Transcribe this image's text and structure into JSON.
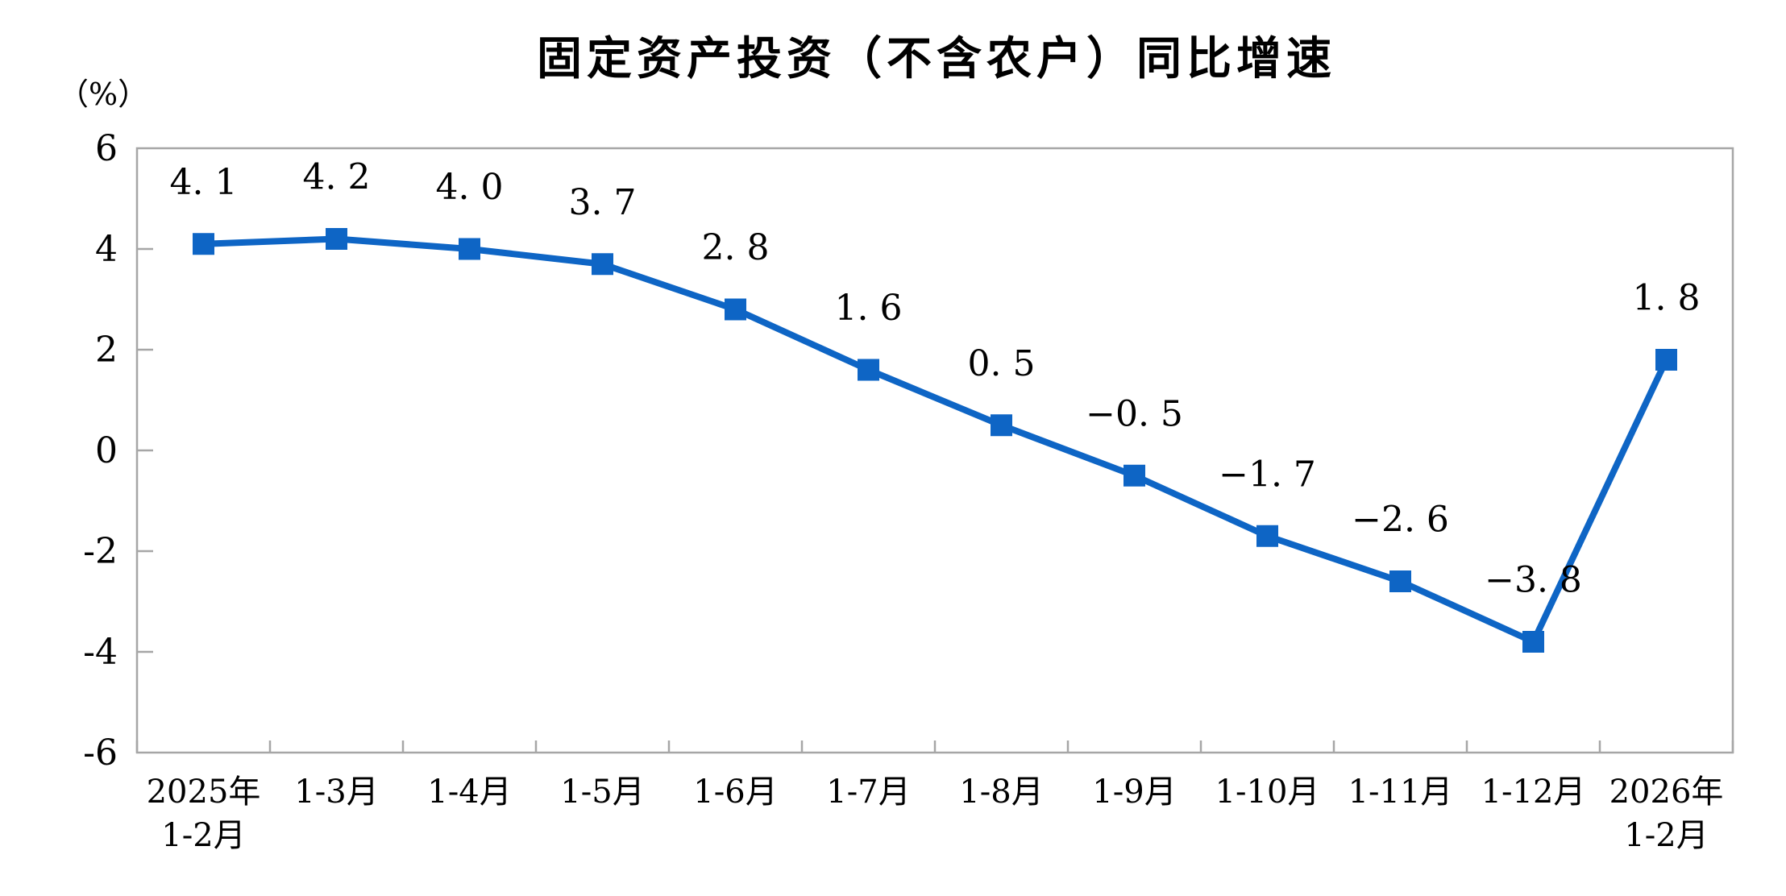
{
  "chart_data": {
    "type": "line",
    "title": "固定资产投资（不含农户）同比增速",
    "unit": "（%）",
    "categories": [
      "2025年\n1-2月",
      "1-3月",
      "1-4月",
      "1-5月",
      "1-6月",
      "1-7月",
      "1-8月",
      "1-9月",
      "1-10月",
      "1-11月",
      "1-12月",
      "2026年\n1-2月"
    ],
    "values": [
      4.1,
      4.2,
      4.0,
      3.7,
      2.8,
      1.6,
      0.5,
      -0.5,
      -1.7,
      -2.6,
      -3.8,
      1.8
    ],
    "point_labels": [
      "4. 1",
      "4. 2",
      "4. 0",
      "3. 7",
      "2. 8",
      "1. 6",
      "0. 5",
      "−0. 5",
      "−1. 7",
      "−2. 6",
      "−3. 8",
      "1. 8"
    ],
    "ylim": [
      -6,
      6
    ],
    "yticks": [
      6,
      4,
      2,
      0,
      -2,
      -4,
      -6
    ],
    "ytick_labels": [
      "6",
      "4",
      "2",
      "0",
      "-2",
      "-4",
      "-6"
    ],
    "grid": "off",
    "legend": "none",
    "marker": "square",
    "colors": {
      "line": "#0E65C5",
      "axis": "#A6A6A6",
      "text": "#000000"
    }
  }
}
